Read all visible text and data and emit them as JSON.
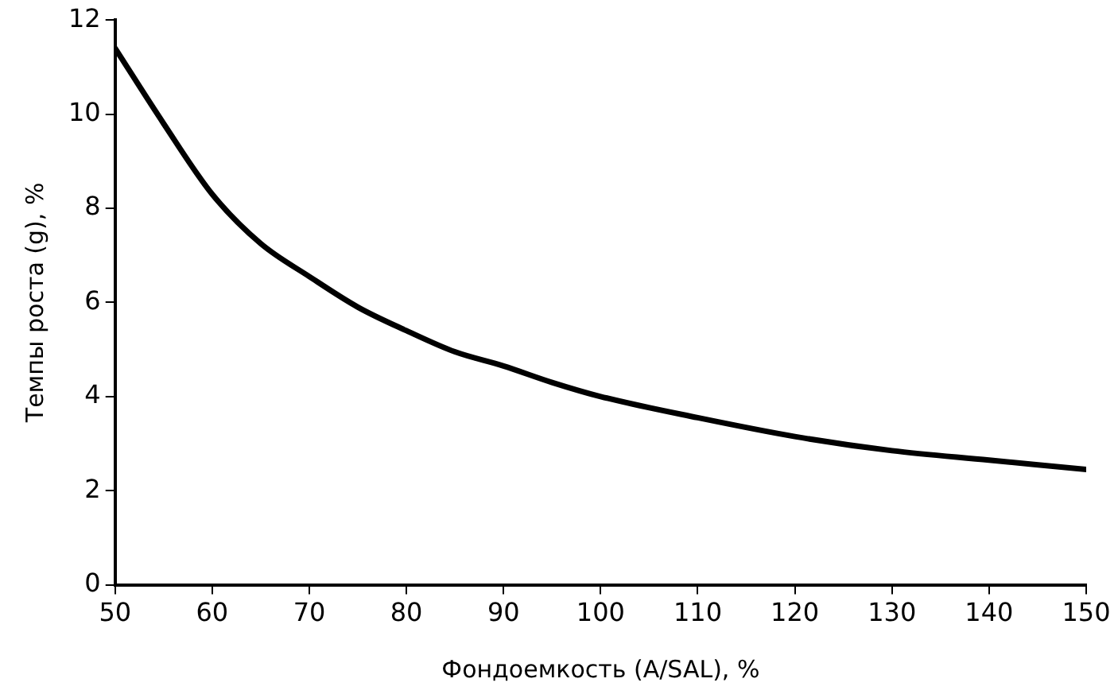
{
  "chart_data": {
    "type": "line",
    "xlabel": "Фондоемкость (A/SAL), %",
    "ylabel": "Темпы роста (g), %",
    "x": [
      50,
      55,
      60,
      65,
      70,
      75,
      80,
      85,
      90,
      95,
      100,
      110,
      120,
      130,
      140,
      150
    ],
    "series": [
      {
        "color": "#000000",
        "values": [
          11.4,
          9.8,
          8.3,
          7.25,
          6.55,
          5.9,
          5.4,
          4.95,
          4.65,
          4.3,
          4.0,
          3.55,
          3.15,
          2.85,
          2.65,
          2.45
        ]
      }
    ],
    "xlim": [
      50,
      150
    ],
    "xticks": [
      50,
      60,
      70,
      80,
      90,
      100,
      110,
      120,
      130,
      140,
      150
    ],
    "ylim": [
      0,
      12
    ],
    "yticks": [
      0,
      2,
      4,
      6,
      8,
      10,
      12
    ],
    "grid": false,
    "legend": false,
    "marker": "none",
    "line_style": "solid"
  }
}
